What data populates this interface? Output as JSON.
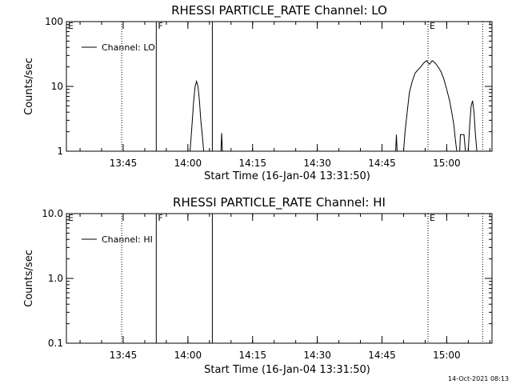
{
  "colors": {
    "background": "#ffffff",
    "foreground": "#000000"
  },
  "timestamp": "14-Oct-2021 08:13",
  "chart_data": [
    {
      "type": "line",
      "title": "RHESSI PARTICLE_RATE Channel: LO",
      "xlabel": "Start Time (16-Jan-04 13:31:50)",
      "ylabel": "Counts/sec",
      "yscale": "log",
      "xlim": [
        "13:31:50",
        "15:10:30"
      ],
      "ylim": [
        1,
        100
      ],
      "xticks": [
        "13:45",
        "14:00",
        "14:15",
        "14:30",
        "14:45",
        "15:00"
      ],
      "yticks": [
        {
          "value": 1,
          "label": "1"
        },
        {
          "value": 10,
          "label": "10"
        },
        {
          "value": 100,
          "label": "100"
        }
      ],
      "legend": {
        "label": "Channel: LO",
        "placement": "top-left"
      },
      "markers": [
        {
          "time": "13:31:50",
          "label": "E",
          "style": "dotted"
        },
        {
          "time": "13:44:40",
          "label": "",
          "style": "dotted"
        },
        {
          "time": "13:52:40",
          "label": "F",
          "style": "solid"
        },
        {
          "time": "14:05:40",
          "label": "",
          "style": "solid"
        },
        {
          "time": "14:55:40",
          "label": "E",
          "style": "dotted"
        },
        {
          "time": "15:08:20",
          "label": "",
          "style": "dotted"
        }
      ],
      "series": [
        {
          "points": [
            [
              "14:00:30",
              1
            ],
            [
              "14:00:50",
              2
            ],
            [
              "14:01:20",
              6
            ],
            [
              "14:01:40",
              10
            ],
            [
              "14:02:00",
              12
            ],
            [
              "14:02:20",
              10
            ],
            [
              "14:02:40",
              6
            ],
            [
              "14:03:00",
              3
            ],
            [
              "14:03:20",
              1.8
            ],
            [
              "14:03:40",
              1
            ]
          ]
        },
        {
          "points": [
            [
              "14:07:40",
              1
            ],
            [
              "14:07:50",
              1.9
            ],
            [
              "14:08:00",
              1
            ]
          ]
        },
        {
          "points": [
            [
              "14:48:10",
              1
            ],
            [
              "14:48:20",
              1.8
            ],
            [
              "14:48:30",
              1
            ]
          ]
        },
        {
          "points": [
            [
              "14:50:00",
              1
            ],
            [
              "14:50:20",
              2
            ],
            [
              "14:50:50",
              4
            ],
            [
              "14:51:20",
              8
            ],
            [
              "14:52:00",
              12
            ],
            [
              "14:52:40",
              16
            ],
            [
              "14:53:20",
              18
            ],
            [
              "14:54:00",
              20
            ],
            [
              "14:54:40",
              23
            ],
            [
              "14:55:20",
              25
            ],
            [
              "14:56:00",
              22
            ],
            [
              "14:56:40",
              25
            ],
            [
              "14:57:20",
              23
            ],
            [
              "14:58:00",
              20
            ],
            [
              "14:58:40",
              17
            ],
            [
              "14:59:20",
              13
            ],
            [
              "15:00:00",
              9
            ],
            [
              "15:00:40",
              6
            ],
            [
              "15:01:10",
              4
            ],
            [
              "15:01:40",
              2.5
            ],
            [
              "15:02:00",
              1.5
            ],
            [
              "15:02:20",
              1
            ]
          ]
        },
        {
          "points": [
            [
              "15:03:00",
              1
            ],
            [
              "15:03:10",
              1.8
            ],
            [
              "15:04:00",
              1.8
            ],
            [
              "15:04:20",
              1
            ]
          ]
        },
        {
          "points": [
            [
              "15:05:00",
              1
            ],
            [
              "15:05:20",
              2.5
            ],
            [
              "15:05:40",
              5
            ],
            [
              "15:06:00",
              6
            ],
            [
              "15:06:20",
              4
            ],
            [
              "15:06:40",
              1.8
            ],
            [
              "15:07:00",
              1
            ]
          ]
        }
      ]
    },
    {
      "type": "line",
      "title": "RHESSI PARTICLE_RATE Channel: HI",
      "xlabel": "Start Time (16-Jan-04 13:31:50)",
      "ylabel": "Counts/sec",
      "yscale": "log",
      "xlim": [
        "13:31:50",
        "15:10:30"
      ],
      "ylim": [
        0.1,
        10
      ],
      "xticks": [
        "13:45",
        "14:00",
        "14:15",
        "14:30",
        "14:45",
        "15:00"
      ],
      "yticks": [
        {
          "value": 0.1,
          "label": "0.1"
        },
        {
          "value": 1,
          "label": "1.0"
        },
        {
          "value": 10,
          "label": "10.0"
        }
      ],
      "legend": {
        "label": "Channel: HI",
        "placement": "top-left"
      },
      "markers": [
        {
          "time": "13:31:50",
          "label": "E",
          "style": "dotted"
        },
        {
          "time": "13:44:40",
          "label": "",
          "style": "dotted"
        },
        {
          "time": "13:52:40",
          "label": "F",
          "style": "solid"
        },
        {
          "time": "14:05:40",
          "label": "",
          "style": "solid"
        },
        {
          "time": "14:55:40",
          "label": "E",
          "style": "dotted"
        },
        {
          "time": "15:08:20",
          "label": "",
          "style": "dotted"
        }
      ],
      "series": []
    }
  ]
}
